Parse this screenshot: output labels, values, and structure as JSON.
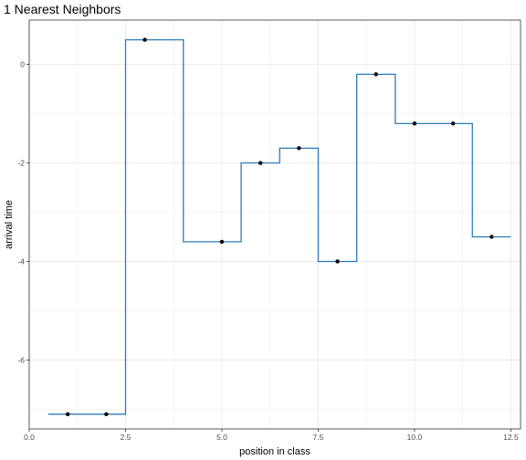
{
  "chart_data": {
    "type": "line",
    "title": "1 Nearest Neighbors",
    "xlabel": "position in class",
    "ylabel": "arrival time",
    "xlim": [
      0,
      12.75
    ],
    "ylim": [
      -7.4,
      0.9
    ],
    "x_ticks": [
      0.0,
      2.5,
      5.0,
      7.5,
      10.0,
      12.5
    ],
    "x_tick_labels": [
      "0.0",
      "2.5",
      "5.0",
      "7.5",
      "10.0",
      "12.5"
    ],
    "y_ticks": [
      0,
      -2,
      -4,
      -6
    ],
    "y_tick_labels": [
      "0",
      "-2",
      "-4",
      "-6"
    ],
    "grid": true,
    "points": [
      {
        "x": 1,
        "y": -7.1
      },
      {
        "x": 2,
        "y": -7.1
      },
      {
        "x": 3,
        "y": 0.5
      },
      {
        "x": 5,
        "y": -3.6
      },
      {
        "x": 6,
        "y": -2.0
      },
      {
        "x": 7,
        "y": -1.7
      },
      {
        "x": 8,
        "y": -4.0
      },
      {
        "x": 9,
        "y": -0.2
      },
      {
        "x": 10,
        "y": -1.2
      },
      {
        "x": 11,
        "y": -1.2
      },
      {
        "x": 12,
        "y": -3.5
      }
    ],
    "step_range": [
      0.5,
      12.5
    ],
    "colors": {
      "line": "#2c7bb6",
      "points": "#000000",
      "grid": "#ebebeb",
      "panel_border": "#333333"
    }
  }
}
